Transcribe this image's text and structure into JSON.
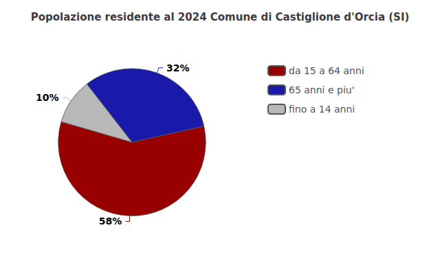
{
  "chart_data": {
    "type": "pie",
    "title": "Popolazione residente al 2024 Comune di Castiglione d'Orcia (SI)",
    "categories": [
      "da 15 a 64 anni",
      "65 anni e piu'",
      "fino a 14 anni"
    ],
    "values": [
      58,
      32,
      10
    ],
    "value_labels": [
      "58%",
      "32%",
      "10%"
    ],
    "colors": [
      "#990000",
      "#1a1aaa",
      "#b8b8b8"
    ],
    "data_labels": true,
    "legend": "right"
  }
}
